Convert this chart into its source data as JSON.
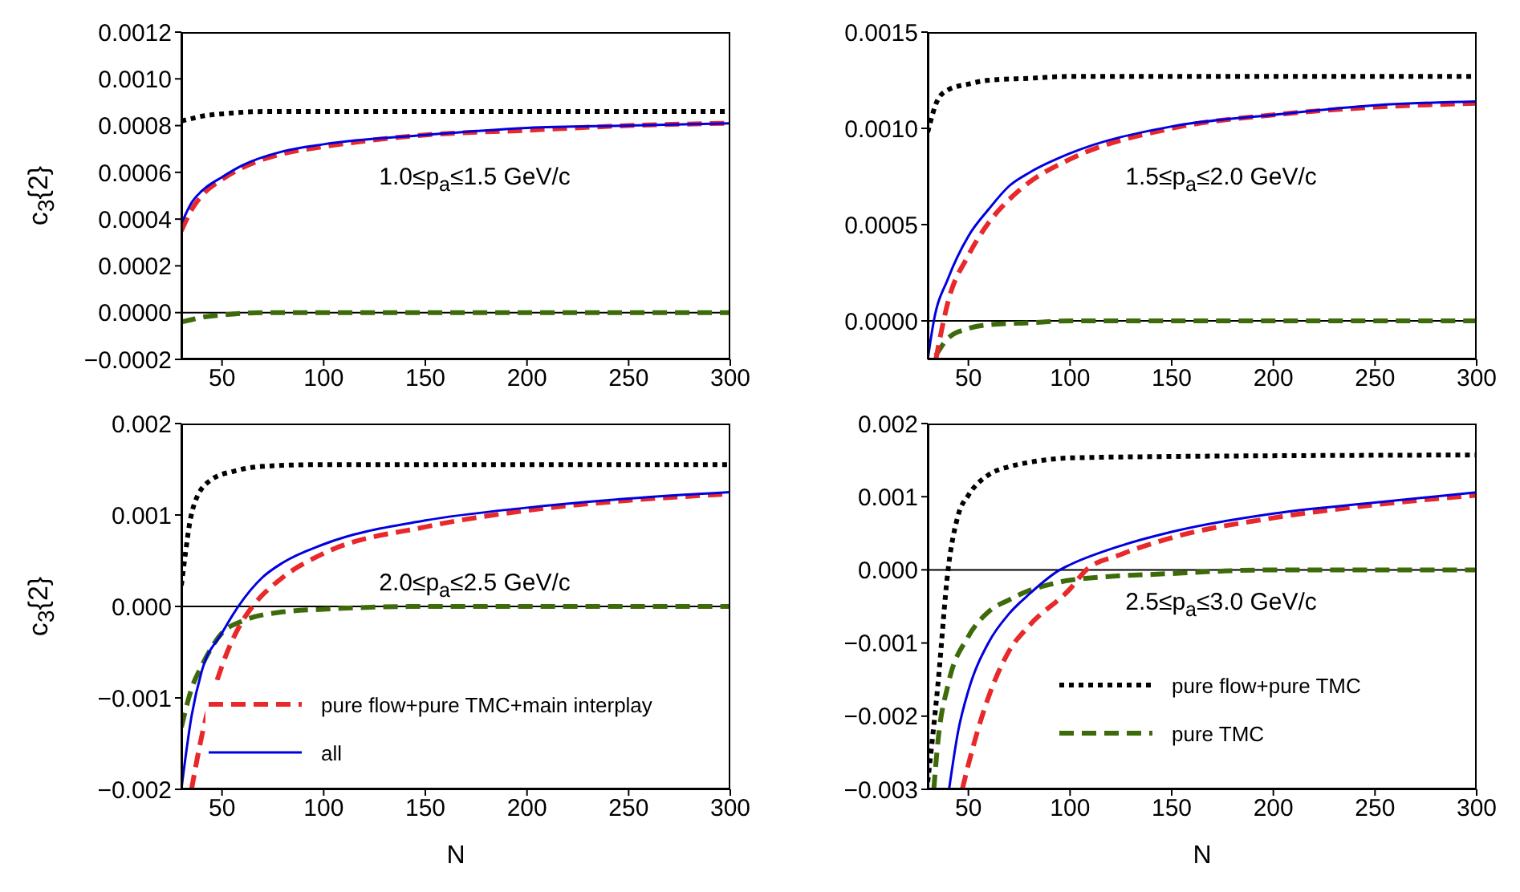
{
  "chart_data": [
    {
      "type": "line",
      "ylabel": "c$_{3}${2}",
      "annotations": [
        "1.0≤p$_{a}$≤1.5 GeV/c"
      ],
      "xlim": [
        30,
        300
      ],
      "xticks": [
        50,
        100,
        150,
        200,
        250,
        300
      ],
      "ylim": [
        -0.0002,
        0.0012
      ],
      "yticks": [
        {
          "value": -0.0002,
          "label": "−0.0002"
        },
        {
          "value": 0,
          "label": "0.0000"
        },
        {
          "value": 0.0002,
          "label": "0.0002"
        },
        {
          "value": 0.0004,
          "label": "0.0004"
        },
        {
          "value": 0.0006,
          "label": "0.0006"
        },
        {
          "value": 0.0008,
          "label": "0.0008"
        },
        {
          "value": 0.001,
          "label": "0.0010"
        },
        {
          "value": 0.0012,
          "label": "0.0012"
        }
      ],
      "ref_lines": [
        {
          "axis": "y",
          "value": 0,
          "color": "#000000"
        }
      ],
      "series": [
        {
          "color": "#000000",
          "line_style": "dotted",
          "x": [
            30,
            35,
            40,
            50,
            70,
            100,
            150,
            200,
            300
          ],
          "values": [
            0.00082,
            0.00083,
            0.00084,
            0.00085,
            0.00086,
            0.00086,
            0.00086,
            0.00086,
            0.00086
          ]
        },
        {
          "color": "#3d6b0a",
          "line_style": "dashed",
          "x": [
            30,
            35,
            40,
            50,
            70,
            100,
            200,
            300
          ],
          "values": [
            -4e-05,
            -3e-05,
            -2e-05,
            -1e-05,
            0,
            0,
            0,
            0
          ]
        },
        {
          "color": "#e8282a",
          "line_style": "dashed",
          "x": [
            30,
            35,
            40,
            50,
            60,
            80,
            100,
            150,
            200,
            250,
            300
          ],
          "values": [
            0.00035,
            0.00044,
            0.0005,
            0.00057,
            0.00062,
            0.00068,
            0.00071,
            0.00076,
            0.00078,
            0.0008,
            0.00081
          ]
        },
        {
          "color": "#0000e0",
          "line_style": "solid",
          "x": [
            30,
            35,
            40,
            50,
            60,
            80,
            100,
            150,
            200,
            250,
            300
          ],
          "values": [
            0.00038,
            0.00047,
            0.00052,
            0.00058,
            0.00063,
            0.00069,
            0.00072,
            0.00076,
            0.00079,
            0.0008,
            0.00081
          ]
        }
      ]
    },
    {
      "type": "line",
      "annotations": [
        "1.5≤p$_{a}$≤2.0 GeV/c"
      ],
      "xlim": [
        30,
        300
      ],
      "xticks": [
        50,
        100,
        150,
        200,
        250,
        300
      ],
      "ylim": [
        -0.0002,
        0.0015
      ],
      "yticks": [
        {
          "value": 0,
          "label": "0.0000"
        },
        {
          "value": 0.0005,
          "label": "0.0005"
        },
        {
          "value": 0.001,
          "label": "0.0010"
        },
        {
          "value": 0.0015,
          "label": "0.0015"
        }
      ],
      "ref_lines": [
        {
          "axis": "y",
          "value": 0,
          "color": "#000000"
        }
      ],
      "series": [
        {
          "color": "#000000",
          "line_style": "dotted",
          "x": [
            30,
            35,
            40,
            50,
            60,
            80,
            100,
            150,
            200,
            300
          ],
          "values": [
            0.00098,
            0.00115,
            0.0012,
            0.00123,
            0.00125,
            0.00126,
            0.00127,
            0.00127,
            0.00127,
            0.00127
          ]
        },
        {
          "color": "#3d6b0a",
          "line_style": "dashed",
          "x": [
            34,
            40,
            50,
            60,
            80,
            100,
            150,
            200,
            300
          ],
          "values": [
            -0.00018,
            -9e-05,
            -4e-05,
            -2e-05,
            -1e-05,
            0,
            0,
            0,
            0
          ]
        },
        {
          "color": "#e8282a",
          "line_style": "dashed",
          "x": [
            34,
            40,
            50,
            60,
            70,
            80,
            100,
            150,
            200,
            250,
            300
          ],
          "values": [
            -0.0002,
            0.0001,
            0.00034,
            0.00051,
            0.00063,
            0.00072,
            0.00084,
            0.001,
            0.00107,
            0.00111,
            0.00113
          ]
        },
        {
          "color": "#0000e0",
          "line_style": "solid",
          "x": [
            30,
            33,
            40,
            50,
            60,
            70,
            80,
            100,
            150,
            200,
            250,
            300
          ],
          "values": [
            -0.0002,
            0,
            0.00022,
            0.00044,
            0.00058,
            0.0007,
            0.00077,
            0.00087,
            0.00101,
            0.00107,
            0.00112,
            0.00114
          ]
        }
      ]
    },
    {
      "type": "line",
      "ylabel": "c$_{3}${2}",
      "xlabel": "N",
      "legend": "bottom left",
      "annotations": [
        "2.0≤p$_{a}$≤2.5 GeV/c"
      ],
      "xlim": [
        30,
        300
      ],
      "xticks": [
        50,
        100,
        150,
        200,
        250,
        300
      ],
      "ylim": [
        -0.002,
        0.002
      ],
      "yticks": [
        {
          "value": -0.002,
          "label": "−0.002"
        },
        {
          "value": -0.001,
          "label": "−0.001"
        },
        {
          "value": 0,
          "label": "0.000"
        },
        {
          "value": 0.001,
          "label": "0.001"
        },
        {
          "value": 0.002,
          "label": "0.002"
        }
      ],
      "ref_lines": [
        {
          "axis": "y",
          "value": 0,
          "color": "#000000"
        }
      ],
      "series": [
        {
          "color": "#000000",
          "line_style": "dotted",
          "x": [
            30,
            32,
            34,
            37,
            45,
            56,
            69,
            96,
            150,
            200,
            300
          ],
          "values": [
            0.00023,
            0.00058,
            0.0009,
            0.00116,
            0.00139,
            0.00148,
            0.00153,
            0.00155,
            0.00155,
            0.00155,
            0.00155
          ]
        },
        {
          "color": "#3d6b0a",
          "line_style": "dashed",
          "x": [
            30,
            35,
            40,
            50,
            60,
            80,
            100,
            150,
            200,
            300
          ],
          "values": [
            -0.00132,
            -0.0009,
            -0.00065,
            -0.00029,
            -0.00016,
            -6e-05,
            -3e-05,
            0,
            0,
            0
          ]
        },
        {
          "name": "pure flow+pure TMC+main interplay",
          "color": "#e8282a",
          "line_style": "dashed",
          "x": [
            35,
            40,
            50,
            60,
            65,
            80,
            100,
            150,
            200,
            250,
            300
          ],
          "values": [
            -0.002,
            -0.00142,
            -0.00065,
            -0.00016,
            0,
            0.00032,
            0.00058,
            0.00087,
            0.00105,
            0.00116,
            0.00123
          ]
        },
        {
          "name": "all",
          "color": "#0000e0",
          "line_style": "solid",
          "x": [
            30,
            35,
            40,
            50,
            58,
            70,
            80,
            100,
            150,
            200,
            250,
            300
          ],
          "values": [
            -0.002,
            -0.0012,
            -0.00071,
            -0.00029,
            0,
            0.00032,
            0.00048,
            0.00068,
            0.00094,
            0.00108,
            0.00118,
            0.00125
          ]
        }
      ]
    },
    {
      "type": "line",
      "xlabel": "N",
      "legend": "bottom right",
      "annotations": [
        "2.5≤p$_{a}$≤3.0 GeV/c"
      ],
      "xlim": [
        30,
        300
      ],
      "xticks": [
        50,
        100,
        150,
        200,
        250,
        300
      ],
      "ylim": [
        -0.003,
        0.002
      ],
      "yticks": [
        {
          "value": -0.003,
          "label": "−0.003"
        },
        {
          "value": -0.002,
          "label": "−0.002"
        },
        {
          "value": -0.001,
          "label": "−0.001"
        },
        {
          "value": 0,
          "label": "0.000"
        },
        {
          "value": 0.001,
          "label": "0.001"
        },
        {
          "value": 0.002,
          "label": "0.002"
        }
      ],
      "ref_lines": [
        {
          "axis": "y",
          "value": 0,
          "color": "#000000"
        }
      ],
      "series": [
        {
          "name": "pure flow+pure TMC",
          "color": "#000000",
          "line_style": "dotted",
          "x": [
            30,
            35,
            40,
            45,
            50,
            60,
            70,
            80,
            100,
            150,
            200,
            300
          ],
          "values": [
            -0.0029,
            -0.00157,
            0,
            0.00075,
            0.00102,
            0.0013,
            0.00141,
            0.00147,
            0.00153,
            0.00155,
            0.00156,
            0.00157
          ]
        },
        {
          "name": "pure TMC",
          "color": "#3d6b0a",
          "line_style": "dashed",
          "x": [
            33,
            35,
            40,
            50,
            60,
            70,
            80,
            90,
            100,
            150,
            200,
            300
          ],
          "values": [
            -0.003,
            -0.00235,
            -0.00157,
            -0.00091,
            -0.00057,
            -0.00041,
            -0.00028,
            -0.0002,
            -0.00014,
            -5e-05,
            0,
            0
          ]
        },
        {
          "color": "#e8282a",
          "line_style": "dashed",
          "x": [
            47,
            50,
            60,
            70,
            80,
            100,
            108,
            125,
            150,
            200,
            250,
            300
          ],
          "values": [
            -0.003,
            -0.00266,
            -0.00173,
            -0.00111,
            -0.00076,
            -0.00026,
            0,
            0.00021,
            0.00044,
            0.00071,
            0.00089,
            0.00102
          ]
        },
        {
          "color": "#0000e0",
          "line_style": "solid",
          "x": [
            40.5,
            45,
            50,
            60,
            70,
            80,
            95,
            100,
            125,
            150,
            200,
            250,
            300
          ],
          "values": [
            -0.003,
            -0.0022,
            -0.00165,
            -0.00099,
            -0.0006,
            -0.00033,
            0,
            7e-05,
            0.00033,
            0.00052,
            0.00077,
            0.00092,
            0.00106
          ]
        }
      ]
    }
  ]
}
